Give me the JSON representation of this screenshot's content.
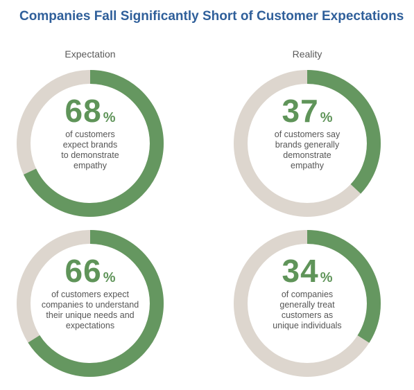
{
  "title": "Companies Fall Significantly Short of Customer Expectations",
  "columns": {
    "left": "Expectation",
    "right": "Reality"
  },
  "colors": {
    "filled": "#659760",
    "track": "#ddd6ce",
    "title": "#2f5f9a",
    "number": "#5f9459"
  },
  "chart_data": [
    {
      "type": "pie",
      "group": "Expectation",
      "value": 68,
      "unit": "%",
      "description": "of customers expect brands to demonstrate empathy"
    },
    {
      "type": "pie",
      "group": "Reality",
      "value": 37,
      "unit": "%",
      "description": "of customers say brands generally demonstrate empathy"
    },
    {
      "type": "pie",
      "group": "Expectation",
      "value": 66,
      "unit": "%",
      "description": "of customers expect companies to understand their unique needs and expectations"
    },
    {
      "type": "pie",
      "group": "Reality",
      "value": 34,
      "unit": "%",
      "description": "of companies generally treat customers as unique individuals"
    }
  ],
  "cards": [
    {
      "value": "68",
      "unit": "%",
      "lines": [
        "of customers",
        "expect brands",
        "to demonstrate",
        "empathy"
      ]
    },
    {
      "value": "37",
      "unit": "%",
      "lines": [
        "of customers say",
        "brands generally",
        "demonstrate",
        "empathy"
      ]
    },
    {
      "value": "66",
      "unit": "%",
      "lines": [
        "of customers expect",
        "companies to understand",
        "their unique needs and",
        "expectations"
      ]
    },
    {
      "value": "34",
      "unit": "%",
      "lines": [
        "of companies",
        "generally treat",
        "customers as",
        "unique individuals"
      ]
    }
  ]
}
